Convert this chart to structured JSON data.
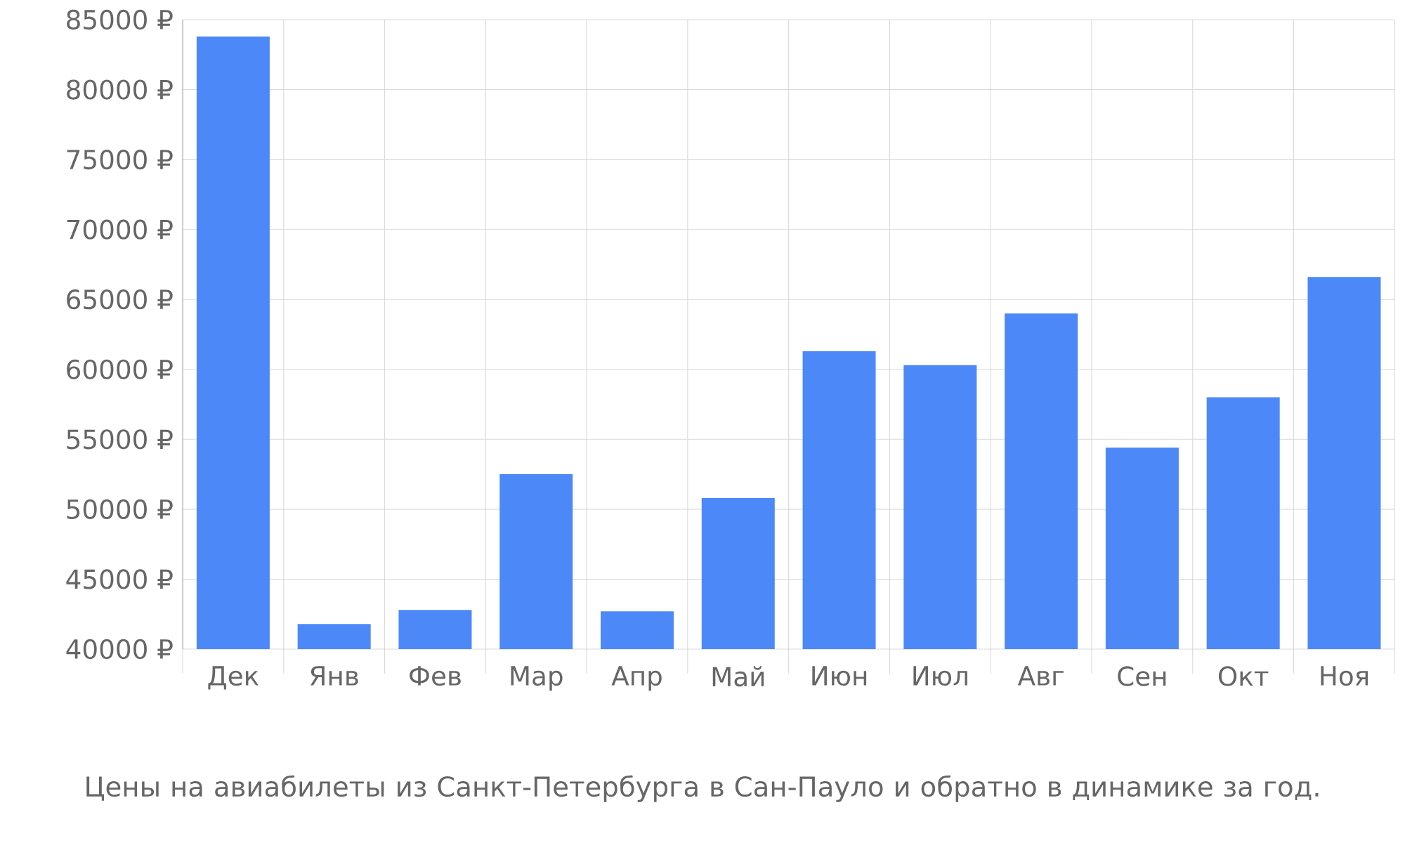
{
  "chart_data": {
    "type": "bar",
    "title": "Цены на авиабилеты из Санкт-Петербурга в Сан-Пауло и обратно в динамике за год.",
    "categories": [
      "Дек",
      "Янв",
      "Фев",
      "Мар",
      "Апр",
      "Май",
      "Июн",
      "Июл",
      "Авг",
      "Сен",
      "Окт",
      "Ноя"
    ],
    "values": [
      83800,
      41800,
      42800,
      52500,
      42700,
      50800,
      61300,
      60300,
      64000,
      54400,
      58000,
      66600
    ],
    "color": "#4d88f8",
    "ylim": [
      40000,
      85000
    ],
    "yticks": [
      {
        "value": 40000,
        "label": "40000 ₽"
      },
      {
        "value": 45000,
        "label": "45000 ₽"
      },
      {
        "value": 50000,
        "label": "50000 ₽"
      },
      {
        "value": 55000,
        "label": "55000 ₽"
      },
      {
        "value": 60000,
        "label": "60000 ₽"
      },
      {
        "value": 65000,
        "label": "65000 ₽"
      },
      {
        "value": 70000,
        "label": "70000 ₽"
      },
      {
        "value": 75000,
        "label": "75000 ₽"
      },
      {
        "value": 80000,
        "label": "80000 ₽"
      },
      {
        "value": 85000,
        "label": "85000 ₽"
      }
    ],
    "grid": true
  }
}
